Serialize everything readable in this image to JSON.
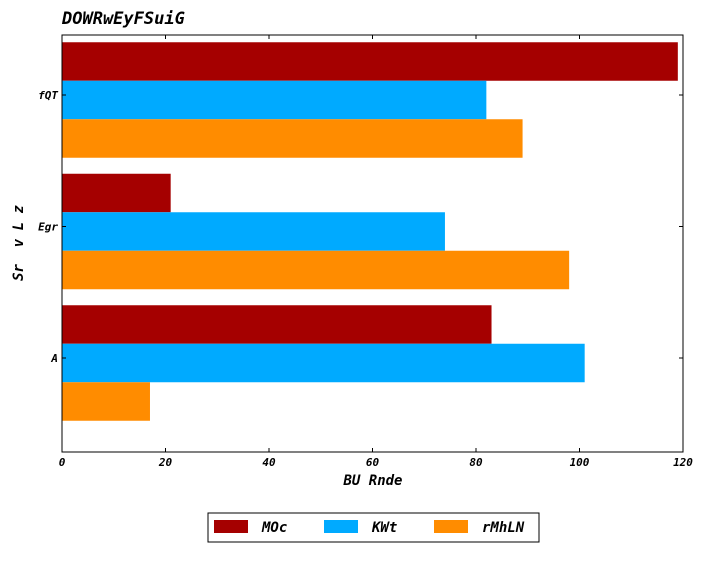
{
  "chart_data": {
    "type": "bar",
    "orientation": "horizontal",
    "title": "DOWRwEyFSuiG",
    "xlabel": "BU Rnde",
    "ylabel": "Sr  v L z",
    "categories": [
      "A",
      "Egr",
      "fQT"
    ],
    "series": [
      {
        "name": "MOc",
        "color": "#a50000",
        "values": [
          83,
          21,
          119
        ]
      },
      {
        "name": "KWt",
        "color": "#00aaff",
        "values": [
          101,
          74,
          82
        ]
      },
      {
        "name": "rMhLN",
        "color": "#ff8c00",
        "values": [
          17,
          98,
          89
        ]
      }
    ],
    "xlim": [
      0,
      120
    ],
    "xticks": [
      0,
      20,
      40,
      60,
      80,
      100,
      120
    ],
    "grid": false,
    "legend": "bottom-center"
  }
}
